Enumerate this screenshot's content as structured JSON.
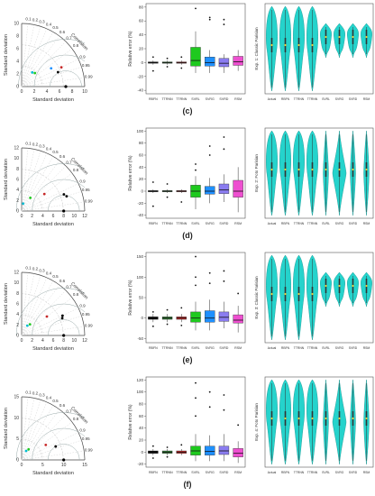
{
  "rows": [
    {
      "label": "(c)",
      "taylor": {
        "y_title": "Standard deviation",
        "x_title": "Standard deviation",
        "corr_title": "Correlation",
        "corr_labels": [
          "0.1",
          "0.2",
          "0.3",
          "0.4",
          "0.5",
          "0.6",
          "0.7",
          "0.8",
          "0.9",
          "0.95",
          "0.99"
        ],
        "x_ticks": [
          "0",
          "2",
          "4",
          "6",
          "8",
          "10"
        ],
        "y_ticks": [
          "0",
          "2",
          "4",
          "6",
          "8",
          "10"
        ],
        "max": 10,
        "ref": 7
      },
      "box": {
        "ylabel": "Relative error (%)",
        "yticks": [
          "-40",
          "-20",
          "0",
          "20",
          "40",
          "60",
          "80"
        ],
        "ymin": -45,
        "ymax": 85
      },
      "violin": {
        "ylabel": "Exp. 1: Classic Parisian",
        "categories": [
          "Actual",
          "RBFN",
          "TTRNN",
          "TTRNN",
          "SVRL",
          "SVRG",
          "SVRD",
          "RSM"
        ]
      }
    },
    {
      "label": "(d)",
      "taylor": {
        "y_title": "Standard deviation",
        "x_title": "Standard deviation",
        "corr_title": "Correlation",
        "corr_labels": [
          "0.1",
          "0.2",
          "0.3",
          "0.4",
          "0.5",
          "0.6",
          "0.7",
          "0.8",
          "0.9",
          "0.95",
          "0.99"
        ],
        "x_ticks": [
          "0",
          "2",
          "4",
          "6",
          "8",
          "10",
          "12"
        ],
        "y_ticks": [
          "0",
          "2",
          "4",
          "6",
          "8",
          "10",
          "12"
        ],
        "max": 12,
        "ref": 8
      },
      "box": {
        "ylabel": "Relative error (%)",
        "yticks": [
          "-40",
          "-20",
          "0",
          "20",
          "40",
          "60",
          "80",
          "100"
        ],
        "ymin": -45,
        "ymax": 105
      },
      "violin": {
        "ylabel": "Exp. 2: Foto Parisian",
        "categories": [
          "Actual",
          "RBFN",
          "TTRNN",
          "TTRNN",
          "SVRL",
          "SVRG",
          "SVRD",
          "RSM"
        ]
      }
    },
    {
      "label": "(e)",
      "taylor": {
        "y_title": "Standard deviation",
        "x_title": "Standard deviation",
        "corr_title": "Correlation",
        "corr_labels": [
          "0.1",
          "0.2",
          "0.3",
          "0.4",
          "0.5",
          "0.6",
          "0.7",
          "0.8",
          "0.9",
          "0.95",
          "0.99"
        ],
        "x_ticks": [
          "0",
          "2",
          "4",
          "6",
          "8",
          "10",
          "12"
        ],
        "y_ticks": [
          "0",
          "2",
          "4",
          "6",
          "8",
          "10",
          "12"
        ],
        "max": 12,
        "ref": 8
      },
      "box": {
        "ylabel": "Relative error (%)",
        "yticks": [
          "-50",
          "0",
          "50",
          "100",
          "150"
        ],
        "ymin": -60,
        "ymax": 160
      },
      "violin": {
        "ylabel": "Exp. 3: Classic Parisian",
        "categories": [
          "Actual",
          "RBFN",
          "TTRNN",
          "TTRNN",
          "SVRL",
          "SVRG",
          "SVRD",
          "RSM"
        ]
      }
    },
    {
      "label": "(f)",
      "taylor": {
        "y_title": "Standard deviation",
        "x_title": "Standard deviation",
        "corr_title": "Correlation",
        "corr_labels": [
          "0.1",
          "0.2",
          "0.3",
          "0.4",
          "0.5",
          "0.6",
          "0.7",
          "0.8",
          "0.9",
          "0.95",
          "0.99"
        ],
        "x_ticks": [
          "0",
          "5",
          "10",
          "15"
        ],
        "y_ticks": [
          "0",
          "5",
          "10",
          "15"
        ],
        "max": 15,
        "ref": 10
      },
      "box": {
        "ylabel": "Relative error (%)",
        "yticks": [
          "-20",
          "0",
          "20",
          "40",
          "60",
          "80",
          "100",
          "120"
        ],
        "ymin": -25,
        "ymax": 125
      },
      "violin": {
        "ylabel": "Exp. 4: Foto Parisian",
        "categories": [
          "Actual",
          "RBFN",
          "TTRNN",
          "TTRNN",
          "SVRL",
          "SVRG",
          "SVRD",
          "RSM"
        ]
      }
    }
  ],
  "box_categories": [
    "RBFN",
    "TTRNN",
    "TTRNN",
    "SVRL",
    "SVRG",
    "SVRD",
    "RSM"
  ],
  "box_colors": [
    "#000000",
    "#2e7d32",
    "#c62828",
    "#1ec91e",
    "#1e90ff",
    "#8a7cf0",
    "#ee4fd0"
  ],
  "chart_data": [
    {
      "type": "box",
      "panel": "c",
      "categories": [
        "RBFN",
        "TTRNN",
        "TTRNN",
        "SVRL",
        "SVRG",
        "SVRD",
        "RSM"
      ],
      "series": [
        {
          "q1": -1,
          "median": 0,
          "q3": 1,
          "whisker_low": -3,
          "whisker_high": 3,
          "outliers": [
            -12,
            8
          ]
        },
        {
          "q1": -1,
          "median": 0,
          "q3": 1,
          "whisker_low": -3,
          "whisker_high": 3,
          "outliers": [
            6,
            -6
          ]
        },
        {
          "q1": -1,
          "median": 0,
          "q3": 1,
          "whisker_low": -3,
          "whisker_high": 3,
          "outliers": [
            8,
            -8
          ]
        },
        {
          "q1": -5,
          "median": 3,
          "q3": 22,
          "whisker_low": -15,
          "whisker_high": 45,
          "outliers": [
            78
          ]
        },
        {
          "q1": -5,
          "median": 0,
          "q3": 8,
          "whisker_low": -15,
          "whisker_high": 18,
          "outliers": [
            65,
            62
          ]
        },
        {
          "q1": -6,
          "median": -1,
          "q3": 6,
          "whisker_low": -15,
          "whisker_high": 12,
          "outliers": [
            62,
            55
          ]
        },
        {
          "q1": -4,
          "median": 1,
          "q3": 9,
          "whisker_low": -12,
          "whisker_high": 18,
          "outliers": []
        }
      ]
    },
    {
      "type": "box",
      "panel": "d",
      "categories": [
        "RBFN",
        "TTRNN",
        "TTRNN",
        "SVRL",
        "SVRG",
        "SVRD",
        "RSM"
      ],
      "series": [
        {
          "q1": -1,
          "median": 0,
          "q3": 1,
          "whisker_low": -3,
          "whisker_high": 3,
          "outliers": [
            -25,
            15
          ]
        },
        {
          "q1": -1,
          "median": 0,
          "q3": 1,
          "whisker_low": -3,
          "whisker_high": 3,
          "outliers": [
            12,
            -10
          ]
        },
        {
          "q1": -1,
          "median": 0,
          "q3": 1,
          "whisker_low": -3,
          "whisker_high": 3,
          "outliers": [
            -18
          ]
        },
        {
          "q1": -10,
          "median": 0,
          "q3": 10,
          "whisker_low": -30,
          "whisker_high": 25,
          "outliers": [
            45,
            35
          ]
        },
        {
          "q1": -5,
          "median": 0,
          "q3": 8,
          "whisker_low": -20,
          "whisker_high": 22,
          "outliers": [
            75,
            60
          ]
        },
        {
          "q1": -4,
          "median": 2,
          "q3": 12,
          "whisker_low": -18,
          "whisker_high": 28,
          "outliers": [
            90,
            70
          ]
        },
        {
          "q1": -10,
          "median": 0,
          "q3": 18,
          "whisker_low": -35,
          "whisker_high": 40,
          "outliers": []
        }
      ]
    },
    {
      "type": "box",
      "panel": "e",
      "categories": [
        "RBFN",
        "TTRNN",
        "TTRNN",
        "SVRL",
        "SVRG",
        "SVRD",
        "RSM"
      ],
      "series": [
        {
          "q1": -3,
          "median": 0,
          "q3": 3,
          "whisker_low": -10,
          "whisker_high": 10,
          "outliers": [
            -20,
            15
          ]
        },
        {
          "q1": -3,
          "median": 0,
          "q3": 3,
          "whisker_low": -10,
          "whisker_high": 10,
          "outliers": [
            20,
            -15
          ]
        },
        {
          "q1": -3,
          "median": 0,
          "q3": 3,
          "whisker_low": -10,
          "whisker_high": 10,
          "outliers": [
            25,
            -18
          ]
        },
        {
          "q1": -10,
          "median": 0,
          "q3": 15,
          "whisker_low": -30,
          "whisker_high": 40,
          "outliers": [
            150,
            100,
            80
          ]
        },
        {
          "q1": -10,
          "median": 0,
          "q3": 18,
          "whisker_low": -30,
          "whisker_high": 45,
          "outliers": [
            110,
            85
          ]
        },
        {
          "q1": -8,
          "median": 2,
          "q3": 15,
          "whisker_low": -25,
          "whisker_high": 40,
          "outliers": [
            115,
            90
          ]
        },
        {
          "q1": -12,
          "median": -5,
          "q3": 8,
          "whisker_low": -35,
          "whisker_high": 30,
          "outliers": [
            60
          ]
        }
      ]
    },
    {
      "type": "box",
      "panel": "f",
      "categories": [
        "RBFN",
        "TTRNN",
        "TTRNN",
        "SVRL",
        "SVRG",
        "SVRD",
        "RSM"
      ],
      "series": [
        {
          "q1": -2,
          "median": 0,
          "q3": 2,
          "whisker_low": -5,
          "whisker_high": 5,
          "outliers": [
            -10,
            10
          ]
        },
        {
          "q1": -2,
          "median": 0,
          "q3": 2,
          "whisker_low": -5,
          "whisker_high": 5,
          "outliers": [
            8,
            -8
          ]
        },
        {
          "q1": -2,
          "median": 0,
          "q3": 2,
          "whisker_low": -5,
          "whisker_high": 5,
          "outliers": [
            12
          ]
        },
        {
          "q1": -5,
          "median": 2,
          "q3": 10,
          "whisker_low": -15,
          "whisker_high": 30,
          "outliers": [
            115,
            90,
            60
          ]
        },
        {
          "q1": -5,
          "median": 1,
          "q3": 10,
          "whisker_low": -15,
          "whisker_high": 28,
          "outliers": [
            100,
            75
          ]
        },
        {
          "q1": -4,
          "median": 2,
          "q3": 10,
          "whisker_low": -15,
          "whisker_high": 30,
          "outliers": [
            95,
            70
          ]
        },
        {
          "q1": -8,
          "median": -2,
          "q3": 6,
          "whisker_low": -18,
          "whisker_high": 18,
          "outliers": [
            45
          ]
        }
      ]
    }
  ]
}
